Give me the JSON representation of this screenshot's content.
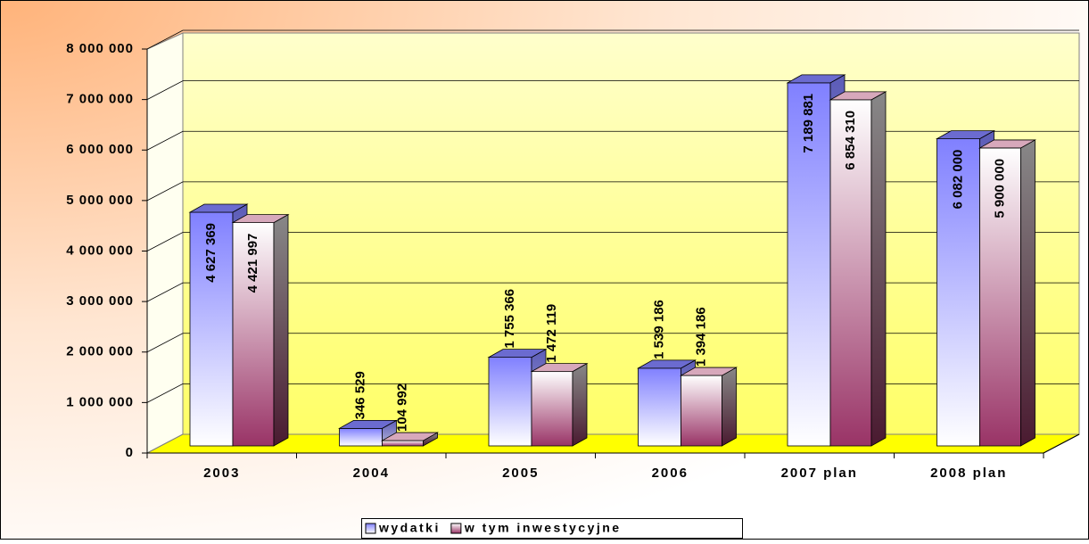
{
  "chart_data": {
    "type": "bar3d",
    "categories": [
      "2003",
      "2004",
      "2005",
      "2006",
      "2007 plan",
      "2008 plan"
    ],
    "series": [
      {
        "name": "wydatki",
        "color": "#8080ff",
        "values": [
          4627369,
          346529,
          1755366,
          1539186,
          7189881,
          6082000
        ],
        "value_labels": [
          "4 627 369",
          "346 529",
          "1 755 366",
          "1 539 186",
          "7 189 881",
          "6 082 000"
        ]
      },
      {
        "name": "w tym inwestycyjne",
        "color": "#993366",
        "values": [
          4421997,
          104992,
          1472119,
          1394186,
          6854310,
          5900000
        ],
        "value_labels": [
          "4 421 997",
          "104 992",
          "1 472 119",
          "1 394 186",
          "6 854 310",
          "5 900 000"
        ]
      }
    ],
    "ylim": [
      0,
      8000000
    ],
    "yticks": [
      0,
      {
        "value": 1000000,
        "label": "1 000 000"
      },
      {
        "value": 2000000,
        "label": "2 000 000"
      },
      {
        "value": 3000000,
        "label": "3 000 000"
      },
      {
        "value": 4000000,
        "label": "4 000 000"
      },
      {
        "value": 5000000,
        "label": "5 000 000"
      },
      {
        "value": 6000000,
        "label": "6 000 000"
      },
      {
        "value": 7000000,
        "label": "7 000 000"
      },
      {
        "value": 8000000,
        "label": "8 000 000"
      }
    ],
    "grid": true,
    "legend": "bottom"
  }
}
